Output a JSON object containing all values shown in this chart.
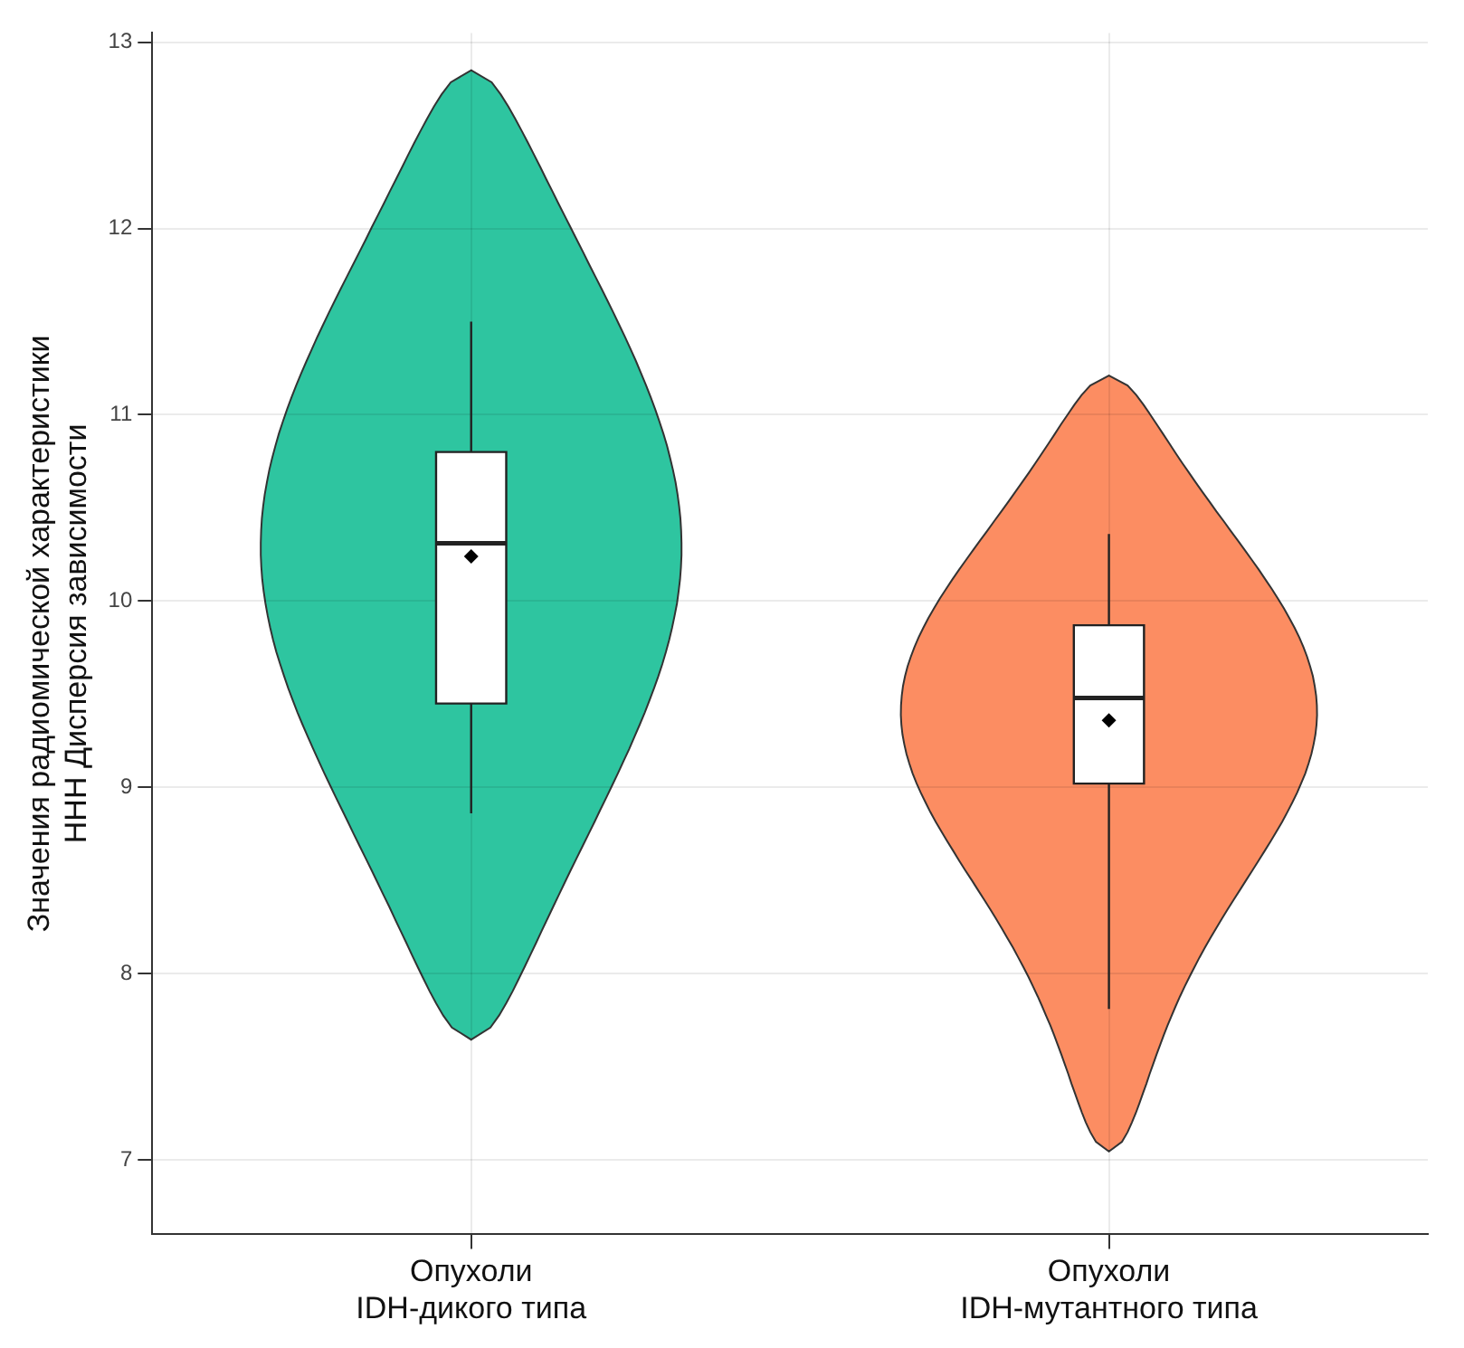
{
  "chart_data": {
    "type": "box",
    "ylabel": "Значения радиомической характеристики\nННН Дисперсия зависимости",
    "categories": [
      "Опухоли\nIDH-дикого типа",
      "Опухоли\nIDH-мутантного типа"
    ],
    "boxes": [
      {
        "low": 8.86,
        "q1": 9.45,
        "median": 10.31,
        "q3": 10.8,
        "high": 11.5,
        "mean": 10.24
      },
      {
        "low": 7.81,
        "q1": 9.02,
        "median": 9.48,
        "q3": 9.87,
        "high": 10.36,
        "mean": 9.36
      }
    ],
    "ylim": [
      6.6,
      13.05
    ],
    "yticks": [
      7,
      8,
      9,
      10,
      11,
      12,
      13
    ],
    "grid": true
  }
}
